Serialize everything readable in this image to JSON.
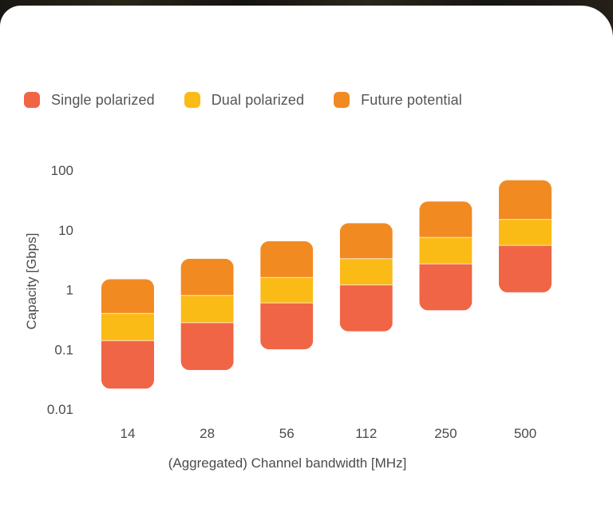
{
  "chart_data": {
    "type": "bar",
    "subtype": "stacked-range-log",
    "xlabel": "(Aggregated) Channel bandwidth [MHz]",
    "ylabel": "Capacity [Gbps]",
    "yscale": "log",
    "ylim": [
      0.01,
      100
    ],
    "yticks": [
      "100",
      "10",
      "1",
      "0.1",
      "0.01"
    ],
    "categories": [
      "14",
      "28",
      "56",
      "112",
      "250",
      "500"
    ],
    "series": [
      {
        "name": "Single polarized",
        "color": "#f06545",
        "low": [
          0.022,
          0.045,
          0.1,
          0.2,
          0.45,
          0.9
        ],
        "high": [
          0.14,
          0.28,
          0.6,
          1.2,
          2.7,
          5.5
        ]
      },
      {
        "name": "Dual polarized",
        "color": "#fbbb17",
        "low": [
          0.14,
          0.28,
          0.6,
          1.2,
          2.7,
          5.5
        ],
        "high": [
          0.4,
          0.8,
          1.6,
          3.3,
          7.5,
          15
        ]
      },
      {
        "name": "Future potential",
        "color": "#f28a22",
        "low": [
          0.4,
          0.8,
          1.6,
          3.3,
          7.5,
          15
        ],
        "high": [
          1.5,
          3.3,
          6.5,
          13,
          30,
          68
        ]
      }
    ],
    "legend": "top-left",
    "grid": false
  }
}
